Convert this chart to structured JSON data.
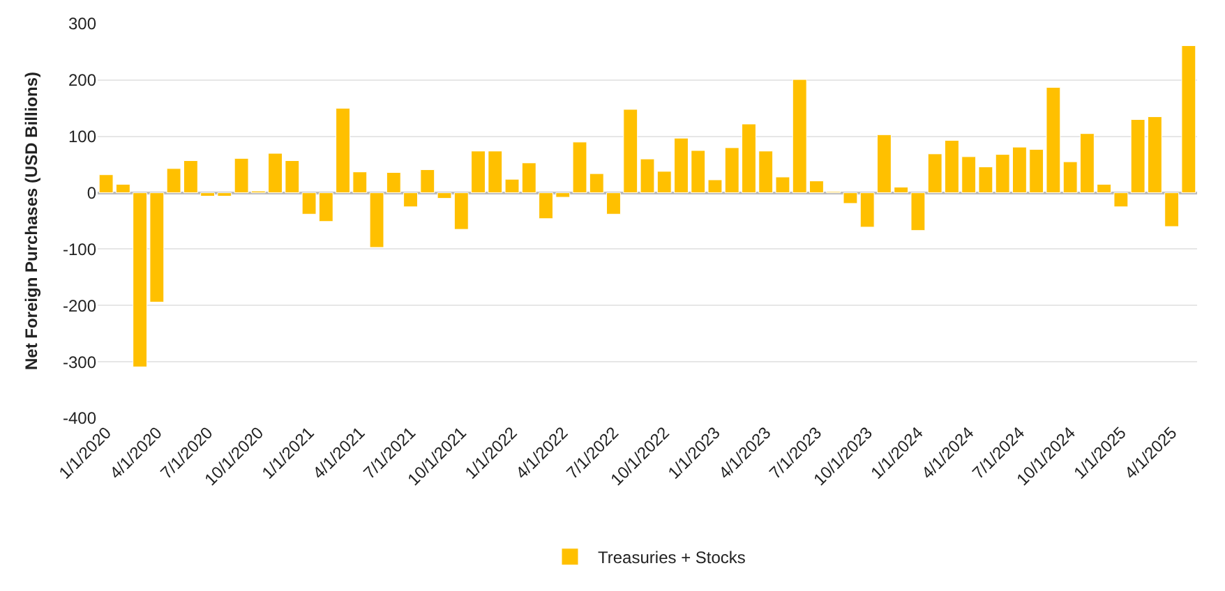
{
  "chart_data": {
    "type": "bar",
    "ylabel": "Net Foreign Purchases (USD Billions)",
    "categories": [
      "1/1/2020",
      null,
      null,
      "4/1/2020",
      null,
      null,
      "7/1/2020",
      null,
      null,
      "10/1/2020",
      null,
      null,
      "1/1/2021",
      null,
      null,
      "4/1/2021",
      null,
      null,
      "7/1/2021",
      null,
      null,
      "10/1/2021",
      null,
      null,
      "1/1/2022",
      null,
      null,
      "4/1/2022",
      null,
      null,
      "7/1/2022",
      null,
      null,
      "10/1/2022",
      null,
      null,
      "1/1/2023",
      null,
      null,
      "4/1/2023",
      null,
      null,
      "7/1/2023",
      null,
      null,
      "10/1/2023",
      null,
      null,
      "1/1/2024",
      null,
      null,
      "4/1/2024",
      null,
      null,
      "7/1/2024",
      null,
      null,
      "10/1/2024",
      null,
      null,
      "1/1/2025",
      null,
      null,
      "4/1/2025",
      null
    ],
    "series": [
      {
        "name": "Treasuries + Stocks",
        "color": "#ffc000",
        "values": [
          32,
          15,
          -309,
          -194,
          43,
          57,
          -6,
          -6,
          61,
          3,
          70,
          57,
          -38,
          -51,
          150,
          37,
          -97,
          36,
          -25,
          41,
          -10,
          -65,
          74,
          74,
          24,
          53,
          -46,
          -8,
          90,
          34,
          -38,
          148,
          60,
          38,
          97,
          75,
          23,
          80,
          122,
          74,
          28,
          201,
          21,
          2,
          -19,
          -61,
          103,
          10,
          -67,
          69,
          93,
          64,
          46,
          68,
          81,
          77,
          187,
          55,
          105,
          15,
          -25,
          130,
          135,
          -60,
          261
        ]
      }
    ],
    "ylim": [
      -400,
      300
    ],
    "yticks": [
      -400,
      -300,
      -200,
      -100,
      0,
      100,
      200,
      300
    ],
    "grid": "y",
    "legend": "bottom"
  }
}
